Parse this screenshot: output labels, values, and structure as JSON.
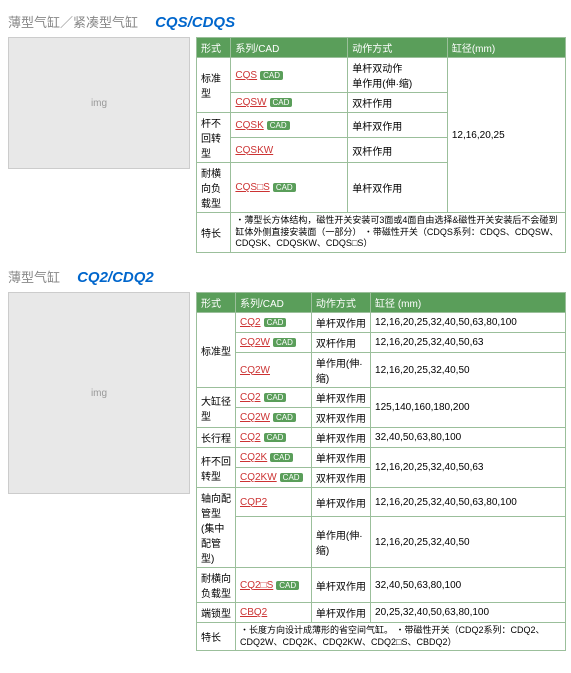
{
  "sec1": {
    "cn": "薄型气缸／紧凑型气缸",
    "en": "CQS/CDQS",
    "hdr": [
      "形式",
      "系列/CAD",
      "动作方式",
      "缸径(mm)"
    ],
    "bore": "12,16,20,25",
    "rows": [
      {
        "form": "标准型",
        "span": 2,
        "items": [
          {
            "m": "CQS",
            "cad": 1,
            "act": "单杆双动作\n单作用(伸·缩)"
          },
          {
            "m": "CQSW",
            "cad": 1,
            "act": "双杆作用"
          }
        ]
      },
      {
        "form": "杆不回转型",
        "span": 2,
        "items": [
          {
            "m": "CQSK",
            "cad": 1,
            "act": "单杆双作用"
          },
          {
            "m": "CQSKW",
            "cad": 0,
            "act": "双杆作用"
          }
        ]
      },
      {
        "form": "耐横向负载型",
        "span": 1,
        "items": [
          {
            "m": "CQS□S",
            "cad": 1,
            "act": "单杆双作用"
          }
        ]
      }
    ],
    "feat_label": "特长",
    "feat": "・薄型长方体结构，磁性开关安装可3面或4面自由选择&磁性开关安装后不会碰到缸体外侧直接安装面（一部分）\n・带磁性开关（CDQS系列：CDQS、CDQSW、CDQSK、CDQSKW、CDQS□S）"
  },
  "sec2": {
    "cn": "薄型气缸",
    "en": "CQ2/CDQ2",
    "hdr": [
      "形式",
      "系列/CAD",
      "动作方式",
      "缸径 (mm)"
    ],
    "rows": [
      {
        "form": "标准型",
        "span": 3,
        "items": [
          {
            "m": "CQ2",
            "cad": 1,
            "act": "单杆双作用",
            "bore": "12,16,20,25,32,40,50,63,80,100"
          },
          {
            "m": "CQ2W",
            "cad": 1,
            "act": "双杆作用",
            "bore": "12,16,20,25,32,40,50,63"
          },
          {
            "m": "CQ2W",
            "cad": 0,
            "act": "单作用(伸·缩)",
            "bore": "12,16,20,25,32,40,50"
          }
        ]
      },
      {
        "form": "大缸径型",
        "span": 2,
        "items": [
          {
            "m": "CQ2",
            "cad": 1,
            "act": "单杆双作用",
            "bore": "125,140,160,180,200"
          },
          {
            "m": "CQ2W",
            "cad": 1,
            "act": "双杆双作用",
            "bore": ""
          }
        ]
      },
      {
        "form": "长行程",
        "span": 1,
        "items": [
          {
            "m": "CQ2",
            "cad": 1,
            "act": "单杆双作用",
            "bore": "32,40,50,63,80,100"
          }
        ]
      },
      {
        "form": "杆不回转型",
        "span": 2,
        "items": [
          {
            "m": "CQ2K",
            "cad": 1,
            "act": "单杆双作用",
            "bore": "12,16,20,25,32,40,50,63"
          },
          {
            "m": "CQ2KW",
            "cad": 1,
            "act": "双杆双作用",
            "bore": ""
          }
        ]
      },
      {
        "form": "轴向配管型\n(集中配管型)",
        "span": 2,
        "items": [
          {
            "m": "CQP2",
            "cad": 0,
            "act": "单杆双作用",
            "bore": "12,16,20,25,32,40,50,63,80,100"
          },
          {
            "m": "",
            "cad": 0,
            "act": "单作用(伸·缩)",
            "bore": "12,16,20,25,32,40,50"
          }
        ]
      },
      {
        "form": "耐横向负载型",
        "span": 1,
        "items": [
          {
            "m": "CQ2□S",
            "cad": 1,
            "act": "单杆双作用",
            "bore": "32,40,50,63,80,100"
          }
        ]
      },
      {
        "form": "端锁型",
        "span": 1,
        "items": [
          {
            "m": "CBQ2",
            "cad": 0,
            "act": "单杆双作用",
            "bore": "20,25,32,40,50,63,80,100"
          }
        ]
      }
    ],
    "feat_label": "特长",
    "feat": "・长度方向设计成薄形的省空间气缸。\n・带磁性开关（CDQ2系列：CDQ2、CDQ2W、CDQ2K、CDQ2KW、CDQ2□S、CBDQ2）"
  }
}
